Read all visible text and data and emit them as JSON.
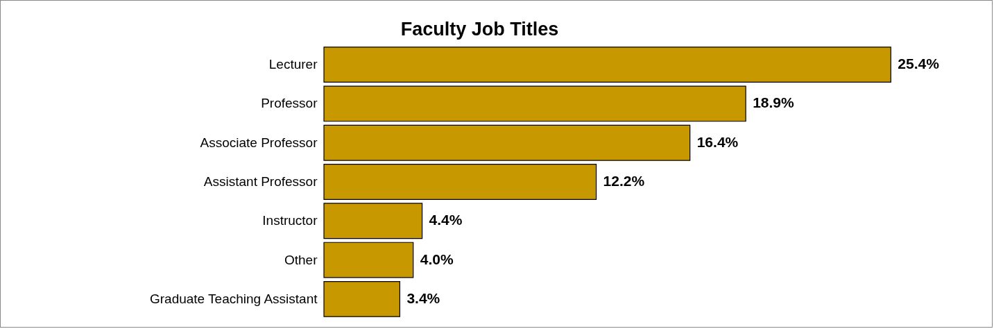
{
  "chart_data": {
    "type": "bar",
    "orientation": "horizontal",
    "title": "Faculty Job Titles",
    "categories": [
      "Lecturer",
      "Professor",
      "Associate Professor",
      "Assistant Professor",
      "Instructor",
      "Other",
      "Graduate Teaching Assistant"
    ],
    "values": [
      25.4,
      18.9,
      16.4,
      12.2,
      4.4,
      4.0,
      3.4
    ],
    "value_labels": [
      "25.4%",
      "18.9%",
      "16.4%",
      "12.2%",
      "4.4%",
      "4.0%",
      "3.4%"
    ],
    "color": "#c89800"
  }
}
